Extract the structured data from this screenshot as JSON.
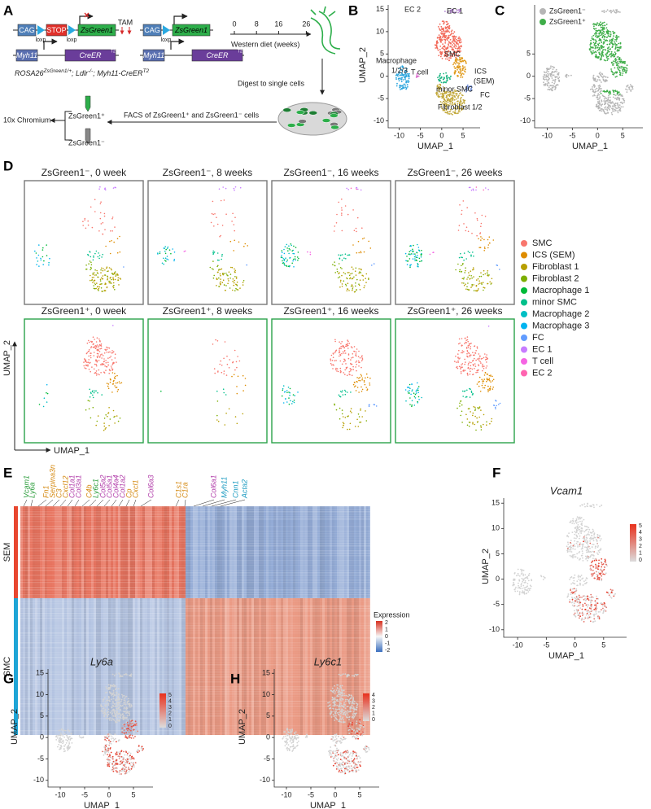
{
  "panel_a": {
    "letter": "A",
    "cag": "CAG",
    "stop": "STOP",
    "zsgreen1": "ZsGreen1",
    "loxp": "loxp",
    "tam": "TAM",
    "myh11": "Myh11",
    "creer": "CreER",
    "t2": "T2",
    "genotype": [
      "ROSA26",
      "ZsGreen1/+",
      "; Ldlr",
      "-/-",
      "; Myh11-CreER",
      "T2"
    ],
    "timeline_ticks": [
      "0",
      "8",
      "16",
      "26"
    ],
    "timeline_label": "Western diet (weeks)",
    "digest": "Digest to single cells",
    "facs": "FACS of ZsGreen1⁺ and ZsGreen1⁻ cells",
    "chromium": "10x Chromium",
    "positive": "ZsGreen1⁺",
    "negative": "ZsGreen1⁻"
  },
  "panel_b": {
    "letter": "B",
    "labels": {
      "ec2": "EC 2",
      "ec1": "EC 1",
      "macrophage": "Macrophage",
      "macrophage_sub": "1/2/3",
      "t_cell": "T cell",
      "smc": "SMC",
      "ics": "ICS",
      "sem": "(SEM)",
      "minor_smc": "minor SMC",
      "fc": "FC",
      "fibroblast": "Fibroblast 1/2"
    },
    "x_label": "UMAP_1",
    "y_label": "UMAP_2",
    "x_ticks": [
      "-10",
      "-5",
      "0",
      "5"
    ],
    "y_ticks": [
      "15",
      "10",
      "5",
      "0",
      "-5",
      "-10"
    ]
  },
  "panel_c": {
    "letter": "C",
    "legend": [
      {
        "text": "ZsGreen1⁻",
        "color": "#b5b5b5"
      },
      {
        "text": "ZsGreen1⁺",
        "color": "#3fae49"
      }
    ],
    "x_label": "UMAP_1",
    "x_ticks": [
      "-10",
      "-5",
      "0",
      "5"
    ],
    "y_ticks": [
      "5",
      "0",
      "-5",
      "-10"
    ]
  },
  "panel_d": {
    "letter": "D",
    "titles": [
      "ZsGreen1⁻, 0 week",
      "ZsGreen1⁻, 8 weeks",
      "ZsGreen1⁻, 16 weeks",
      "ZsGreen1⁻, 26 weeks",
      "ZsGreen1⁺, 0 week",
      "ZsGreen1⁺, 8 weeks",
      "ZsGreen1⁺, 16 weeks",
      "ZsGreen1⁺, 26 weeks"
    ],
    "legend": [
      {
        "text": "SMC",
        "color": "#f8766d"
      },
      {
        "text": "ICS (SEM)",
        "color": "#de8c00"
      },
      {
        "text": "Fibroblast 1",
        "color": "#b79f00"
      },
      {
        "text": "Fibroblast 2",
        "color": "#7cae00"
      },
      {
        "text": "Macrophage 1",
        "color": "#00ba38"
      },
      {
        "text": "minor SMC",
        "color": "#00c08b"
      },
      {
        "text": "Macrophage 2",
        "color": "#00bfc4"
      },
      {
        "text": "Macrophage 3",
        "color": "#00b4f0"
      },
      {
        "text": "FC",
        "color": "#619cff"
      },
      {
        "text": "EC 1",
        "color": "#c77cff"
      },
      {
        "text": "T cell",
        "color": "#f564e3"
      },
      {
        "text": "EC 2",
        "color": "#ff64b0"
      }
    ],
    "x_label": "UMAP_1",
    "y_label": "UMAP_2"
  },
  "panel_e": {
    "letter": "E",
    "genes": [
      {
        "text": "Vcam1",
        "color": "#2a9d3a"
      },
      {
        "text": "Ly6a",
        "color": "#2a9d3a"
      },
      {
        "text": "Fn1",
        "color": "#d4880f"
      },
      {
        "text": "Serpina3n",
        "color": "#d4880f"
      },
      {
        "text": "C3",
        "color": "#d4880f"
      },
      {
        "text": "Cxcl12",
        "color": "#d4880f"
      },
      {
        "text": "Col1a1",
        "color": "#b03aa8"
      },
      {
        "text": "Col3a1",
        "color": "#b03aa8"
      },
      {
        "text": "C4b",
        "color": "#d4880f"
      },
      {
        "text": "Ly6c1",
        "color": "#2a9d3a"
      },
      {
        "text": "Col5a2",
        "color": "#b03aa8"
      },
      {
        "text": "Col5a1",
        "color": "#b03aa8"
      },
      {
        "text": "Col4a4",
        "color": "#b03aa8"
      },
      {
        "text": "Col1a2",
        "color": "#b03aa8"
      },
      {
        "text": "Cp",
        "color": "#d4880f"
      },
      {
        "text": "Cxcl1",
        "color": "#d4880f"
      },
      {
        "text": "Col6a3",
        "color": "#b03aa8"
      },
      {
        "text": "C1s1",
        "color": "#d4880f"
      },
      {
        "text": "C1ra",
        "color": "#d4880f"
      },
      {
        "text": "Col6a1",
        "color": "#b03aa8"
      },
      {
        "text": "Myh11",
        "color": "#1a9ac0"
      },
      {
        "text": "Cnn1",
        "color": "#1a9ac0"
      },
      {
        "text": "Acta2",
        "color": "#1a9ac0"
      }
    ],
    "rows": [
      "SEM",
      "SMC"
    ],
    "legend_title": "Expression",
    "legend_ticks": [
      "2",
      "1",
      "0",
      "-1",
      "-2"
    ]
  },
  "panel_f": {
    "letter": "F",
    "title": "Vcam1",
    "x_label": "UMAP_1",
    "y_label": "UMAP_2",
    "x_ticks": [
      "-10",
      "-5",
      "0",
      "5"
    ],
    "y_ticks": [
      "15",
      "10",
      "5",
      "0",
      "-5",
      "-10"
    ],
    "scale_ticks": [
      "5",
      "4",
      "3",
      "2",
      "1",
      "0"
    ]
  },
  "panel_g": {
    "letter": "G",
    "title": "Ly6a",
    "x_label": "UMAP_1",
    "y_label": "UMAP_2",
    "x_ticks": [
      "-10",
      "-5",
      "0",
      "5"
    ],
    "y_ticks": [
      "15",
      "10",
      "5",
      "0",
      "-5",
      "-10"
    ],
    "scale_ticks": [
      "5",
      "4",
      "3",
      "2",
      "1",
      "0"
    ]
  },
  "panel_h": {
    "letter": "H",
    "title": "Ly6c1",
    "x_label": "UMAP_1",
    "y_label": "UMAP_2",
    "x_ticks": [
      "-10",
      "-5",
      "0",
      "5"
    ],
    "y_ticks": [
      "15",
      "10",
      "5",
      "0",
      "-5",
      "-10"
    ],
    "scale_ticks": [
      "4",
      "3",
      "2",
      "1",
      "0"
    ]
  }
}
